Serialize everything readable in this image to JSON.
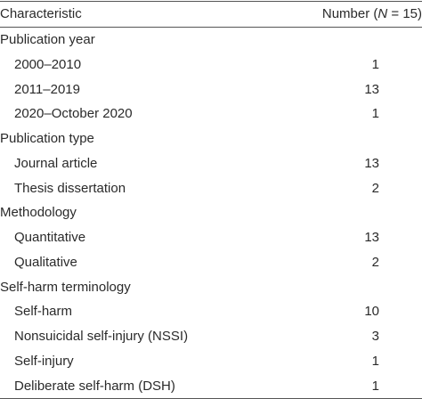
{
  "header": {
    "characteristic": "Characteristic",
    "number_prefix": "Number (",
    "number_var": "N",
    "number_suffix": " = 15)"
  },
  "sections": [
    {
      "title": "Publication year",
      "items": [
        {
          "label": "2000–2010",
          "value": 1
        },
        {
          "label": "2011–2019",
          "value": 13
        },
        {
          "label": "2020–October 2020",
          "value": 1
        }
      ]
    },
    {
      "title": "Publication type",
      "items": [
        {
          "label": "Journal article",
          "value": 13
        },
        {
          "label": "Thesis dissertation",
          "value": 2
        }
      ]
    },
    {
      "title": "Methodology",
      "items": [
        {
          "label": "Quantitative",
          "value": 13
        },
        {
          "label": "Qualitative",
          "value": 2
        }
      ]
    },
    {
      "title": "Self-harm terminology",
      "items": [
        {
          "label": "Self-harm",
          "value": 10
        },
        {
          "label": "Nonsuicidal self-injury (NSSI)",
          "value": 3
        },
        {
          "label": "Self-injury",
          "value": 1
        },
        {
          "label": "Deliberate self-harm (DSH)",
          "value": 1
        }
      ]
    }
  ]
}
